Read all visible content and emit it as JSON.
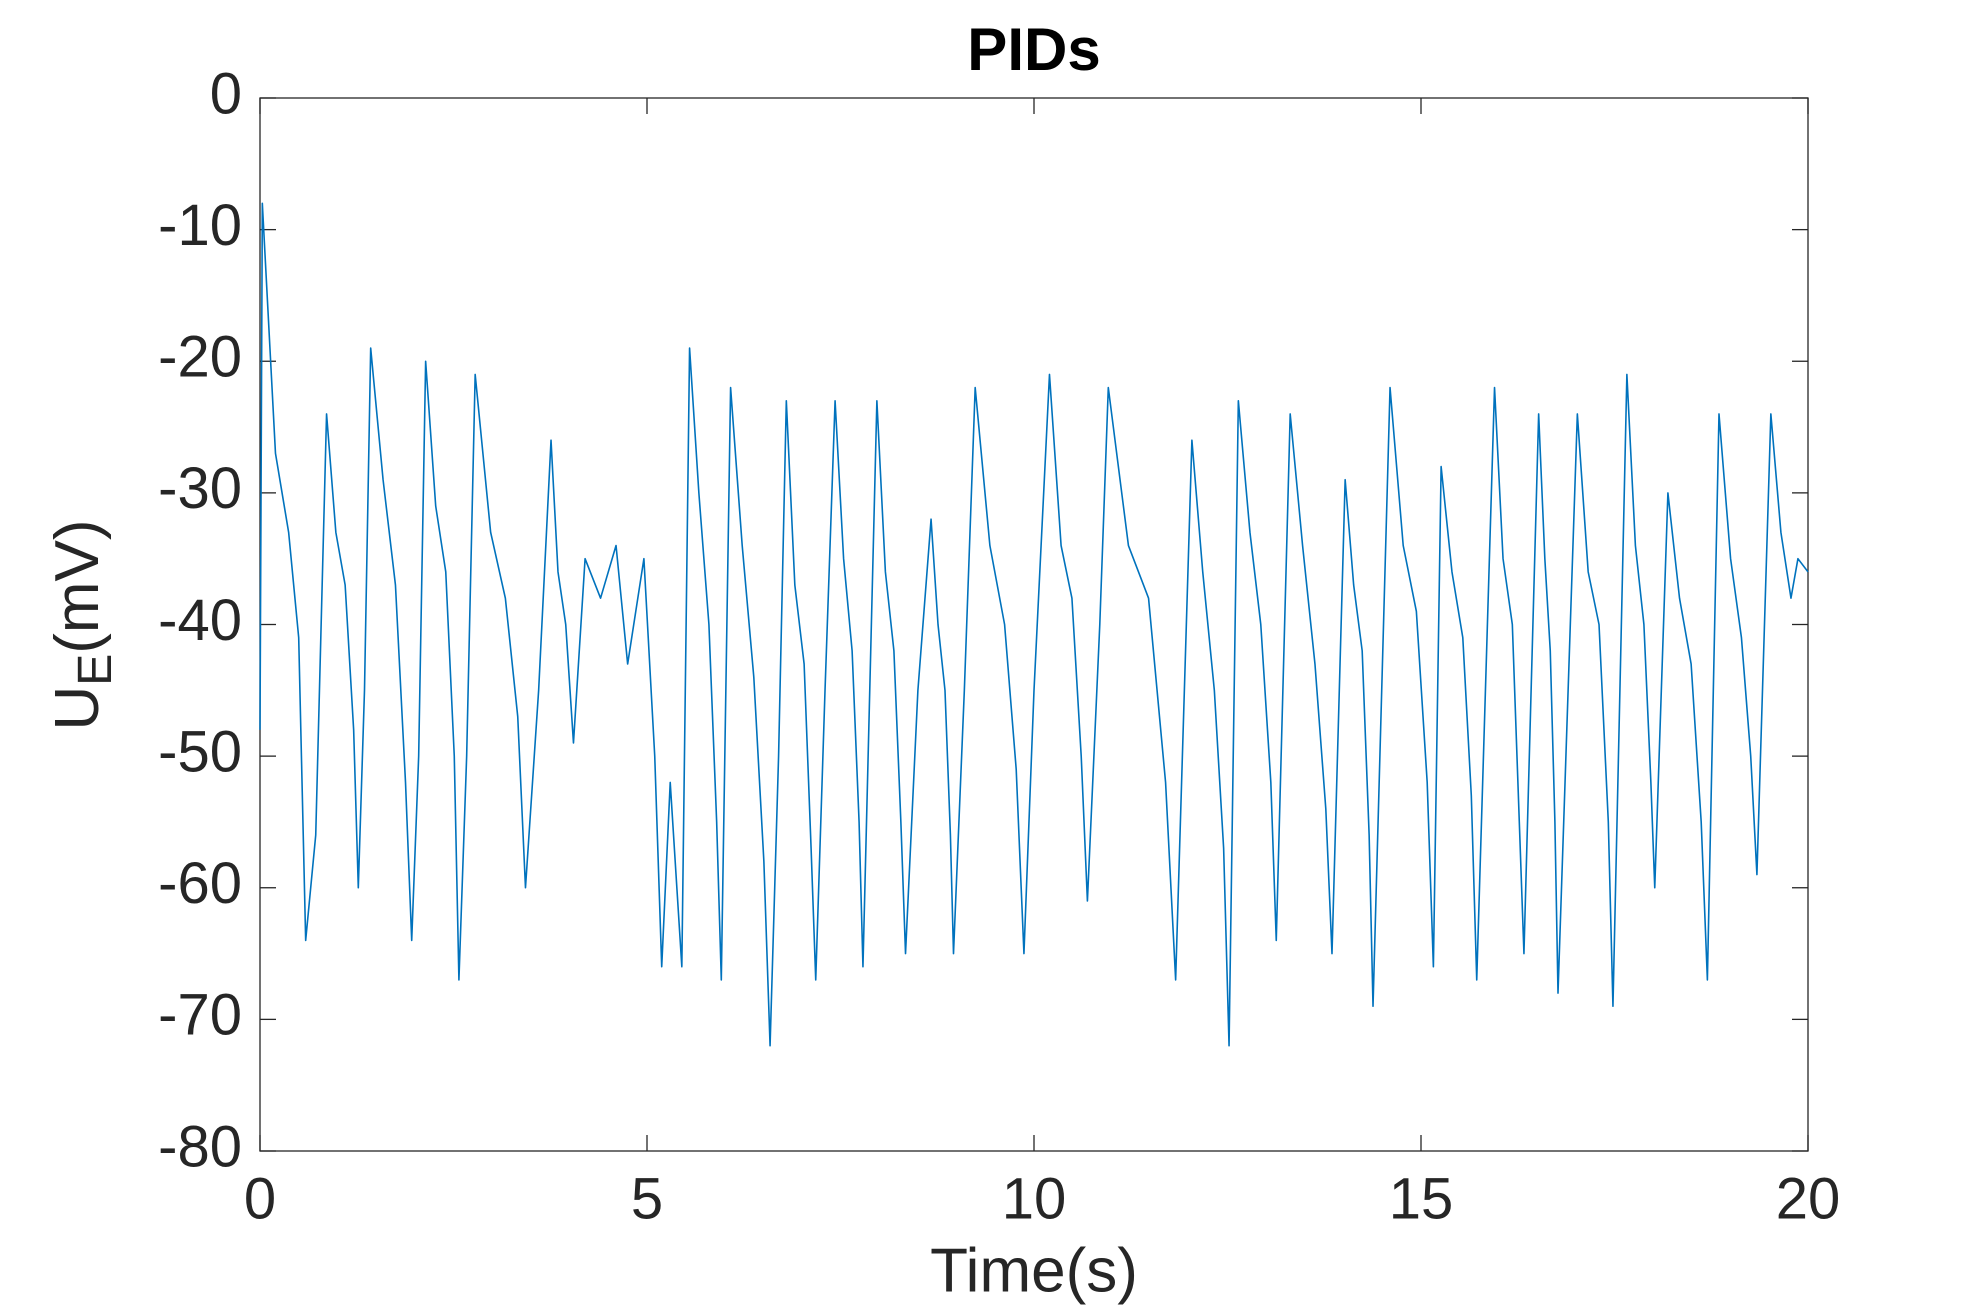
{
  "chart_data": {
    "type": "line",
    "title": "PIDs",
    "xlabel": "Time(s)",
    "ylabel": [
      "U",
      "E",
      "(mV)"
    ],
    "color": "#0072BD",
    "grid": false,
    "xlim": [
      0,
      20
    ],
    "xticks": [
      0,
      5,
      10,
      15,
      20
    ],
    "ylim": [
      -80,
      0
    ],
    "yticks": [
      -80,
      -70,
      -60,
      -50,
      -40,
      -30,
      -20,
      -10,
      0
    ],
    "x": [
      0,
      0.03,
      0.2,
      0.37,
      0.5,
      0.59,
      0.72,
      0.86,
      0.98,
      1.1,
      1.21,
      1.27,
      1.35,
      1.43,
      1.59,
      1.75,
      1.88,
      1.96,
      2.05,
      2.14,
      2.27,
      2.4,
      2.51,
      2.57,
      2.67,
      2.78,
      2.98,
      3.17,
      3.33,
      3.43,
      3.6,
      3.76,
      3.85,
      3.95,
      4.05,
      4.2,
      4.4,
      4.6,
      4.75,
      4.96,
      5.1,
      5.19,
      5.3,
      5.45,
      5.55,
      5.67,
      5.8,
      5.9,
      5.96,
      6.08,
      6.23,
      6.38,
      6.51,
      6.59,
      6.7,
      6.8,
      6.91,
      7.03,
      7.12,
      7.18,
      7.3,
      7.43,
      7.54,
      7.65,
      7.74,
      7.79,
      7.97,
      8.08,
      8.19,
      8.28,
      8.34,
      8.5,
      8.67,
      8.76,
      8.85,
      8.92,
      8.96,
      9.1,
      9.24,
      9.43,
      9.62,
      9.77,
      9.87,
      10,
      10.2,
      10.35,
      10.49,
      10.61,
      10.69,
      10.85,
      10.96,
      11.22,
      11.48,
      11.7,
      11.83,
      12.04,
      12.18,
      12.33,
      12.45,
      12.52,
      12.64,
      12.79,
      12.93,
      13.06,
      13.13,
      13.31,
      13.47,
      13.63,
      13.77,
      13.85,
      14.02,
      14.13,
      14.24,
      14.33,
      14.38,
      14.6,
      14.77,
      14.94,
      15.08,
      15.16,
      15.26,
      15.4,
      15.54,
      15.65,
      15.72,
      15.95,
      16.06,
      16.18,
      16.27,
      16.33,
      16.52,
      16.6,
      16.67,
      16.73,
      16.77,
      17.02,
      17.16,
      17.3,
      17.42,
      17.48,
      17.66,
      17.77,
      17.88,
      17.97,
      18.02,
      18.19,
      18.34,
      18.49,
      18.62,
      18.7,
      18.85,
      19,
      19.14,
      19.26,
      19.34,
      19.52,
      19.65,
      19.78,
      19.87,
      20
    ],
    "values": [
      -48,
      -8,
      -27,
      -33,
      -41,
      -64,
      -56,
      -24,
      -33,
      -37,
      -48,
      -60,
      -45,
      -19,
      -29,
      -37,
      -52,
      -64,
      -50,
      -20,
      -31,
      -36,
      -50,
      -67,
      -50,
      -21,
      -33,
      -38,
      -47,
      -60,
      -45,
      -26,
      -36,
      -40,
      -49,
      -35,
      -38,
      -34,
      -43,
      -35,
      -50,
      -66,
      -52,
      -66,
      -19,
      -30,
      -40,
      -55,
      -67,
      -22,
      -34,
      -44,
      -58,
      -72,
      -50,
      -23,
      -37,
      -43,
      -57,
      -67,
      -45,
      -23,
      -35,
      -42,
      -55,
      -66,
      -23,
      -36,
      -42,
      -55,
      -65,
      -45,
      -32,
      -40,
      -45,
      -56,
      -65,
      -45,
      -22,
      -34,
      -40,
      -51,
      -65,
      -45,
      -21,
      -34,
      -38,
      -50,
      -61,
      -40,
      -22,
      -34,
      -38,
      -52,
      -67,
      -26,
      -36,
      -45,
      -57,
      -72,
      -23,
      -33,
      -40,
      -52,
      -64,
      -24,
      -34,
      -43,
      -54,
      -65,
      -29,
      -37,
      -42,
      -56,
      -69,
      -22,
      -34,
      -39,
      -52,
      -66,
      -28,
      -36,
      -41,
      -53,
      -67,
      -22,
      -35,
      -40,
      -55,
      -65,
      -24,
      -35,
      -42,
      -55,
      -68,
      -24,
      -36,
      -40,
      -55,
      -69,
      -21,
      -34,
      -40,
      -52,
      -60,
      -30,
      -38,
      -43,
      -55,
      -67,
      -24,
      -35,
      -41,
      -50,
      -59,
      -24,
      -33,
      -38,
      -35,
      -36
    ]
  }
}
